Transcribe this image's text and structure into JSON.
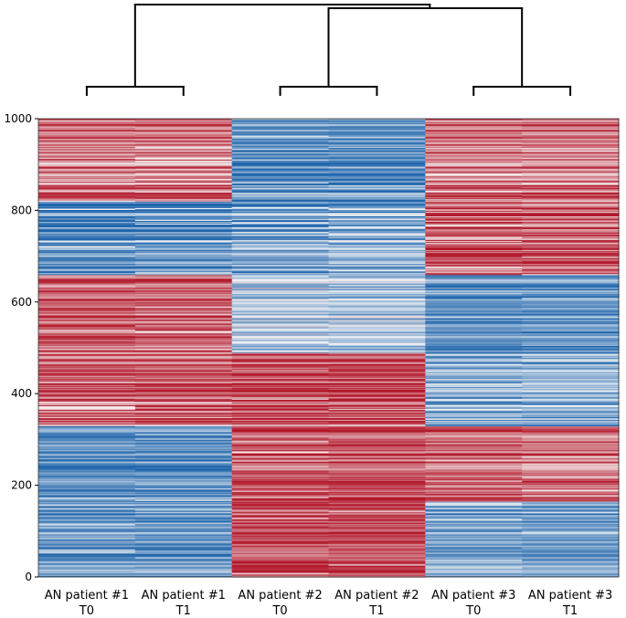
{
  "chart_data": {
    "type": "heatmap",
    "title": "",
    "xlabel": "",
    "ylabel": "",
    "columns": [
      {
        "line1": "AN patient #1",
        "line2": "T0"
      },
      {
        "line1": "AN patient #1",
        "line2": "T1"
      },
      {
        "line1": "AN patient #2",
        "line2": "T0"
      },
      {
        "line1": "AN patient #2",
        "line2": "T1"
      },
      {
        "line1": "AN patient #3",
        "line2": "T0"
      },
      {
        "line1": "AN patient #3",
        "line2": "T1"
      }
    ],
    "ylim": [
      0,
      1000
    ],
    "yticks": [
      "0",
      "200",
      "400",
      "600",
      "800",
      "1000"
    ],
    "colormap": {
      "low": "#2166ac",
      "mid": "#f7f7f7",
      "high": "#b2182b",
      "scale": "RdBu_r"
    },
    "row_clusters": [
      {
        "rows": [
          0,
          165
        ],
        "values": [
          -0.7,
          -0.7,
          0.8,
          0.8,
          -0.6,
          -0.6
        ]
      },
      {
        "rows": [
          165,
          330
        ],
        "values": [
          -0.7,
          -0.7,
          0.8,
          0.8,
          0.7,
          0.6
        ]
      },
      {
        "rows": [
          330,
          490
        ],
        "values": [
          0.7,
          0.7,
          0.8,
          0.8,
          -0.5,
          -0.5
        ]
      },
      {
        "rows": [
          490,
          660
        ],
        "values": [
          0.7,
          0.7,
          -0.3,
          -0.3,
          -0.7,
          -0.7
        ]
      },
      {
        "rows": [
          660,
          820
        ],
        "values": [
          -0.8,
          -0.7,
          -0.6,
          -0.5,
          0.7,
          0.7
        ]
      },
      {
        "rows": [
          820,
          1000
        ],
        "values": [
          0.6,
          0.6,
          -0.7,
          -0.7,
          0.6,
          0.6
        ]
      }
    ],
    "dendrogram": {
      "pairs": [
        [
          0,
          1
        ],
        [
          2,
          3
        ],
        [
          4,
          5
        ]
      ],
      "merges": [
        "(#2,#3)",
        "(#1,(#2,#3))"
      ]
    }
  }
}
